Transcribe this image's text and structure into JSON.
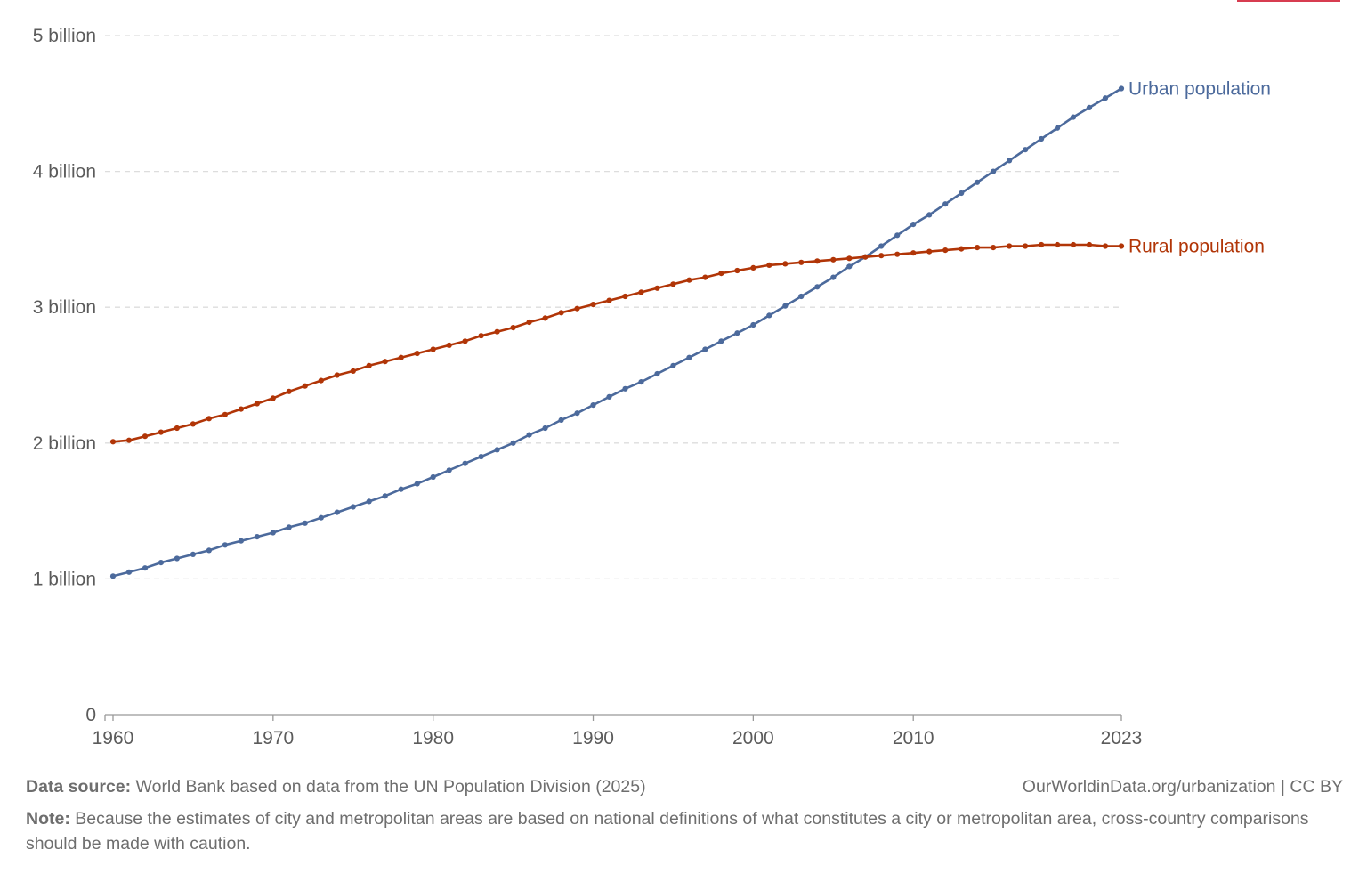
{
  "colors": {
    "urban": "#4c6a9c",
    "rural": "#b13507",
    "grid": "#dddddd",
    "axis": "#999999",
    "accent": "#d73c50"
  },
  "chart_data": {
    "type": "line",
    "x": [
      1960,
      1961,
      1962,
      1963,
      1964,
      1965,
      1966,
      1967,
      1968,
      1969,
      1970,
      1971,
      1972,
      1973,
      1974,
      1975,
      1976,
      1977,
      1978,
      1979,
      1980,
      1981,
      1982,
      1983,
      1984,
      1985,
      1986,
      1987,
      1988,
      1989,
      1990,
      1991,
      1992,
      1993,
      1994,
      1995,
      1996,
      1997,
      1998,
      1999,
      2000,
      2001,
      2002,
      2003,
      2004,
      2005,
      2006,
      2007,
      2008,
      2009,
      2010,
      2011,
      2012,
      2013,
      2014,
      2015,
      2016,
      2017,
      2018,
      2019,
      2020,
      2021,
      2022,
      2023
    ],
    "series": [
      {
        "name": "Urban population",
        "color": "#4c6a9c",
        "values": [
          1.02,
          1.05,
          1.08,
          1.12,
          1.15,
          1.18,
          1.21,
          1.25,
          1.28,
          1.31,
          1.34,
          1.38,
          1.41,
          1.45,
          1.49,
          1.53,
          1.57,
          1.61,
          1.66,
          1.7,
          1.75,
          1.8,
          1.85,
          1.9,
          1.95,
          2.0,
          2.06,
          2.11,
          2.17,
          2.22,
          2.28,
          2.34,
          2.4,
          2.45,
          2.51,
          2.57,
          2.63,
          2.69,
          2.75,
          2.81,
          2.87,
          2.94,
          3.01,
          3.08,
          3.15,
          3.22,
          3.3,
          3.37,
          3.45,
          3.53,
          3.61,
          3.68,
          3.76,
          3.84,
          3.92,
          4.0,
          4.08,
          4.16,
          4.24,
          4.32,
          4.4,
          4.47,
          4.54,
          4.61
        ]
      },
      {
        "name": "Rural population",
        "color": "#b13507",
        "values": [
          2.01,
          2.02,
          2.05,
          2.08,
          2.11,
          2.14,
          2.18,
          2.21,
          2.25,
          2.29,
          2.33,
          2.38,
          2.42,
          2.46,
          2.5,
          2.53,
          2.57,
          2.6,
          2.63,
          2.66,
          2.69,
          2.72,
          2.75,
          2.79,
          2.82,
          2.85,
          2.89,
          2.92,
          2.96,
          2.99,
          3.02,
          3.05,
          3.08,
          3.11,
          3.14,
          3.17,
          3.2,
          3.22,
          3.25,
          3.27,
          3.29,
          3.31,
          3.32,
          3.33,
          3.34,
          3.35,
          3.36,
          3.37,
          3.38,
          3.39,
          3.4,
          3.41,
          3.42,
          3.43,
          3.44,
          3.44,
          3.45,
          3.45,
          3.46,
          3.46,
          3.46,
          3.46,
          3.45,
          3.45
        ]
      }
    ],
    "ylim": [
      0,
      5
    ],
    "yticks": [
      0,
      1,
      2,
      3,
      4,
      5
    ],
    "ytick_labels": [
      "0",
      "1 billion",
      "2 billion",
      "3 billion",
      "4 billion",
      "5 billion"
    ],
    "xlim": [
      1959.5,
      2023
    ],
    "xticks": [
      1960,
      1970,
      1980,
      1990,
      2000,
      2010,
      2023
    ],
    "xtick_labels": [
      "1960",
      "1970",
      "1980",
      "1990",
      "2000",
      "2010",
      "2023"
    ],
    "grid": "horizontal-dashed",
    "legend": "inline-right"
  },
  "footer": {
    "source_label": "Data source:",
    "source_text": " World Bank based on data from the UN Population Division (2025)",
    "credit": "OurWorldinData.org/urbanization | CC BY",
    "note_label": "Note:",
    "note_text": " Because the estimates of city and metropolitan areas are based on national definitions of what constitutes a city or metropolitan area, cross-country comparisons should be made with caution."
  }
}
